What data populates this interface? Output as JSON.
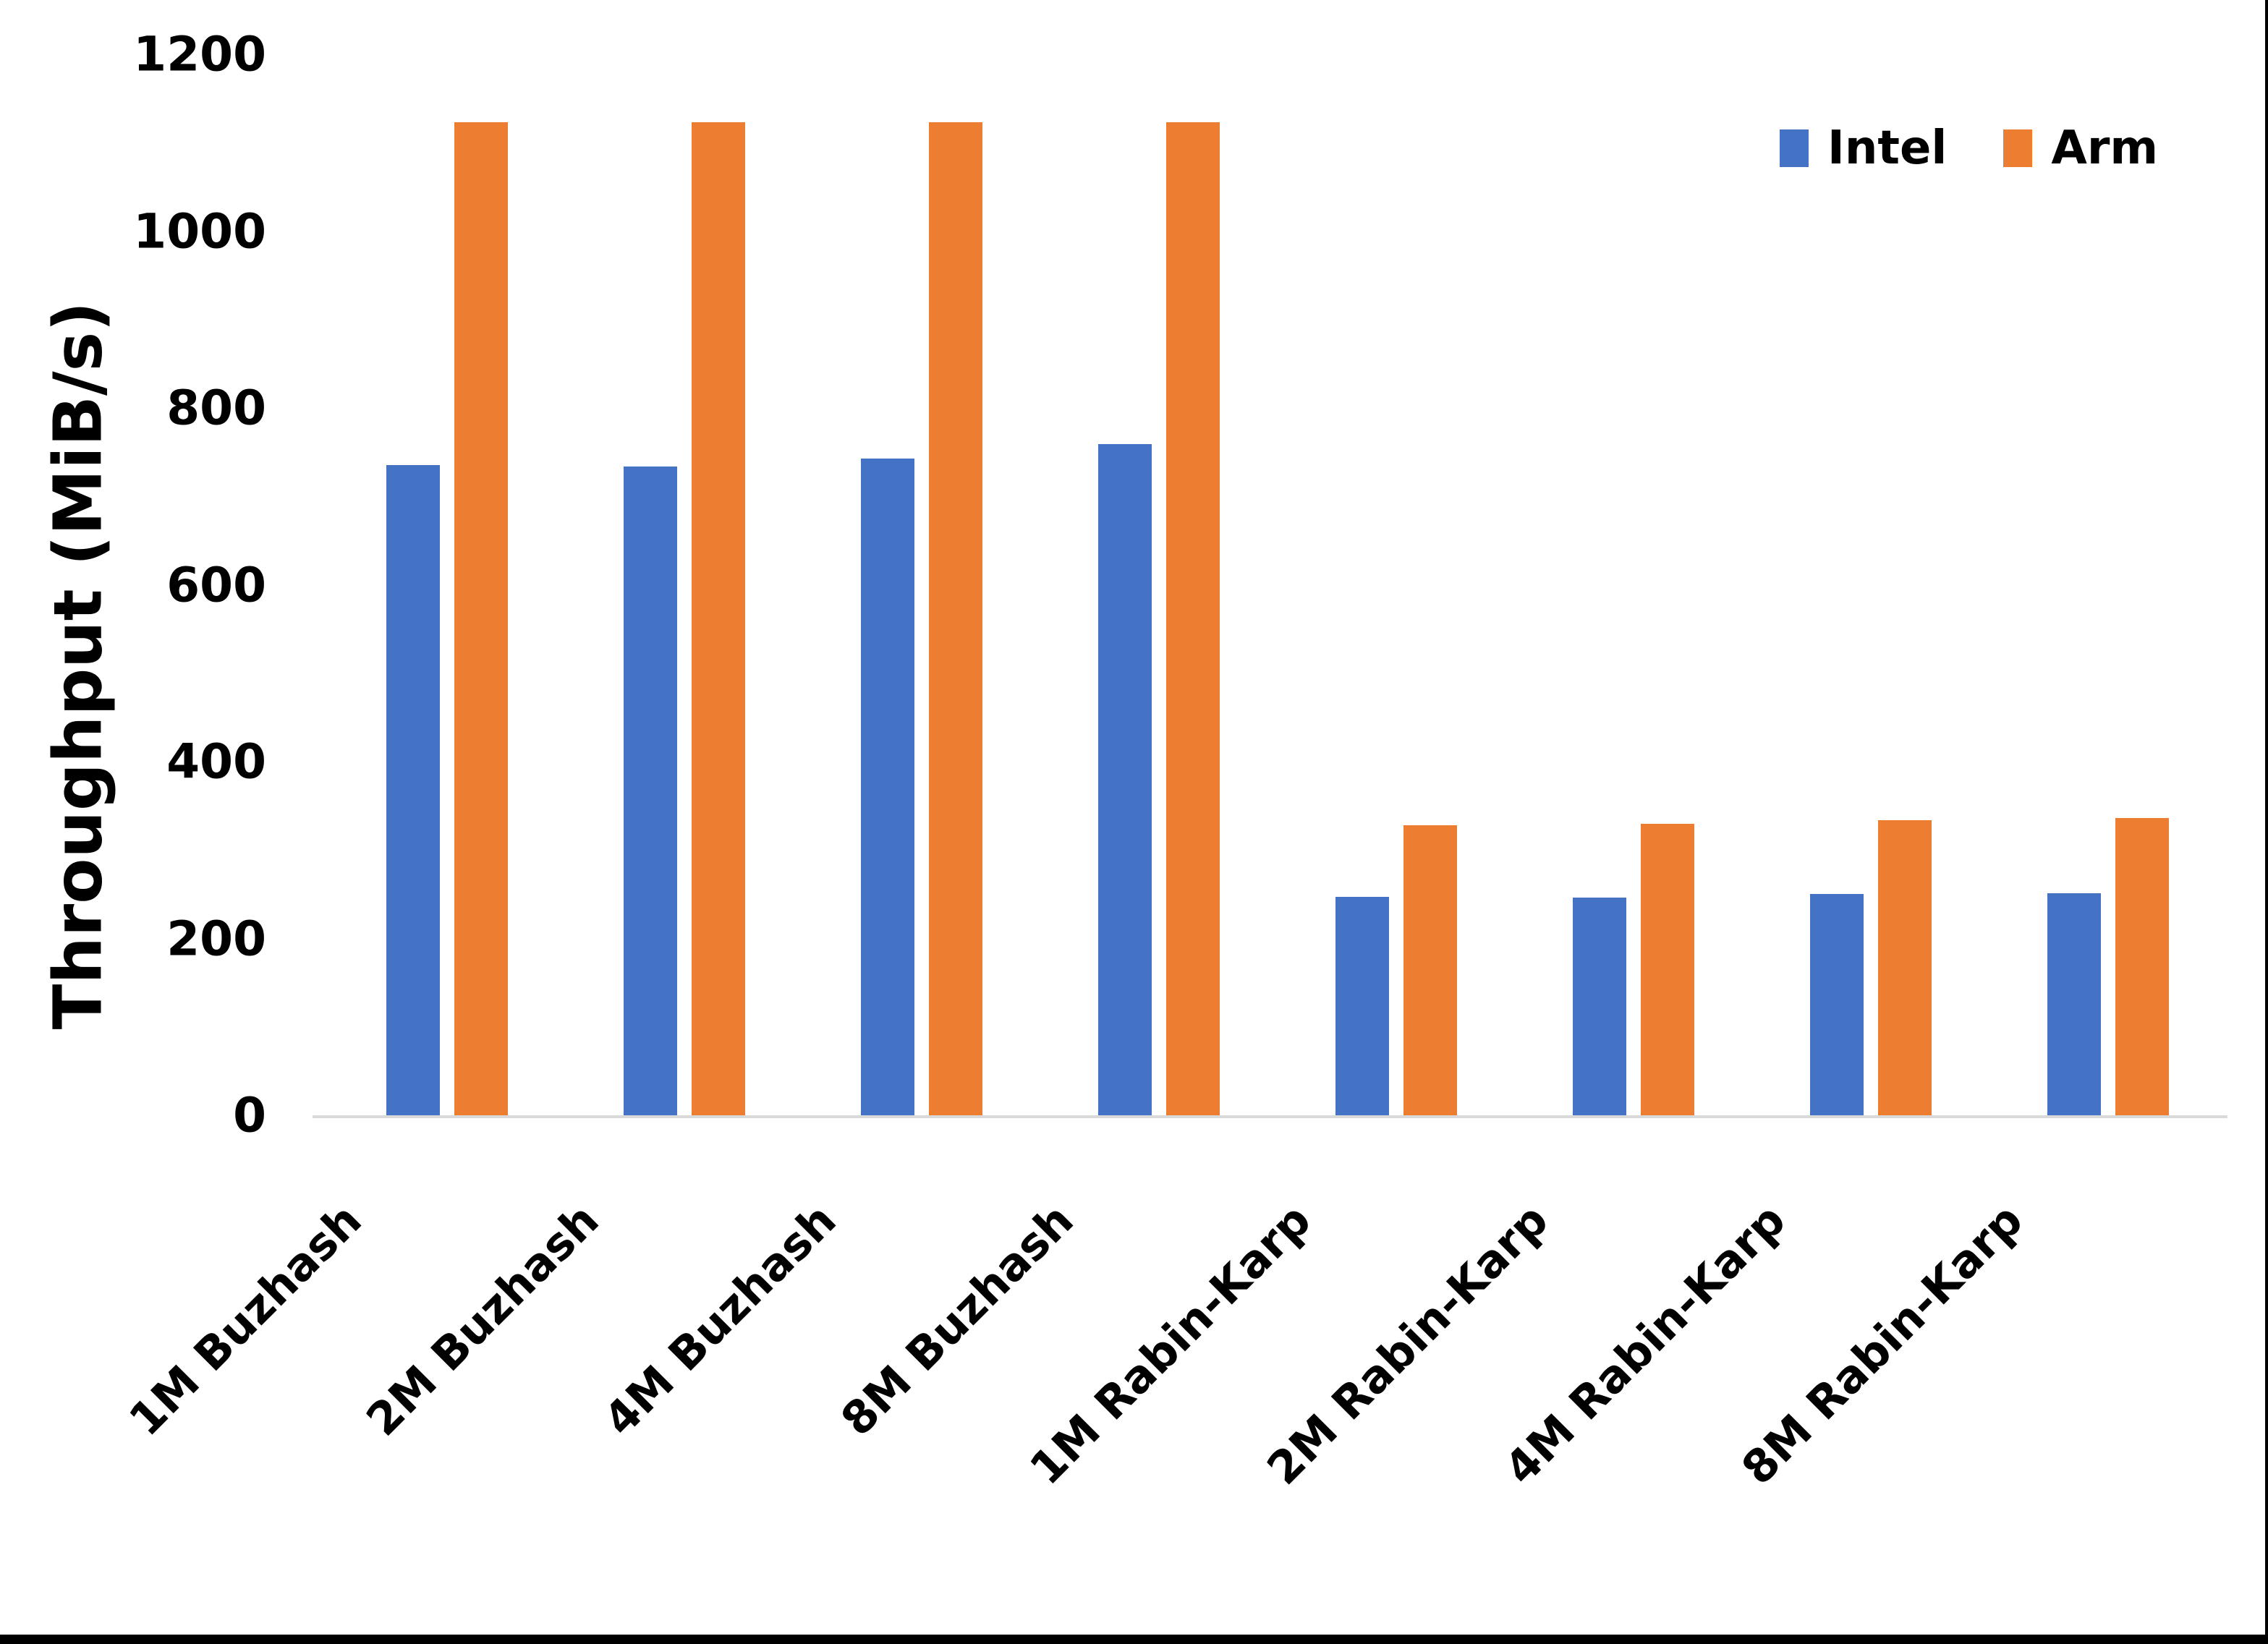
{
  "figure": {
    "background_color": "#ffffff",
    "frame_color": "#000000"
  },
  "chart_data": {
    "type": "bar",
    "title": "",
    "xlabel": "",
    "ylabel": "Throughput (MiB/s)",
    "ylim": [
      0,
      1200
    ],
    "yticks": [
      0,
      200,
      400,
      600,
      800,
      1000,
      1200
    ],
    "grid": false,
    "axis_line_color": "#d9d9d9",
    "legend_position": "top-right",
    "categories": [
      "1M Buzhash",
      "2M Buzhash",
      "4M Buzhash",
      "8M Buzhash",
      "1M Rabin-Karp",
      "2M Rabin-Karp",
      "4M Rabin-Karp",
      "8M Rabin-Karp"
    ],
    "series": [
      {
        "name": "Intel",
        "color": "#4472c4",
        "values": [
          735,
          734,
          743,
          759,
          247,
          246,
          250,
          251
        ]
      },
      {
        "name": "Arm",
        "color": "#ed7d31",
        "values": [
          1123,
          1123,
          1123,
          1123,
          328,
          330,
          334,
          336
        ]
      }
    ]
  }
}
